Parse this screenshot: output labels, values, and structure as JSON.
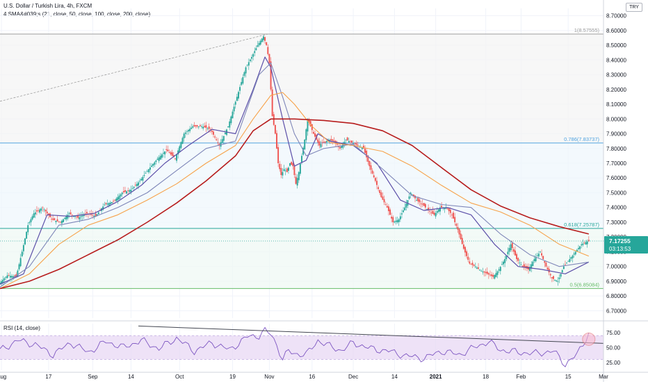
{
  "header": {
    "title": "U.S. Dollar / Turkish Lira, 4h, FXCM",
    "indicator": "4 SMA&#039;s (21, close, 50, close, 100, close, 200, close)",
    "currency": "TRY"
  },
  "price_badge": {
    "price": "7.17255",
    "countdown": "03:13:53"
  },
  "colors": {
    "candle_up": "#26a69a",
    "candle_down": "#ef5350",
    "sma21": "#5b4ea8",
    "sma50": "#7e86b8",
    "sma100": "#f7a24a",
    "sma200": "#b71c1c",
    "fib_786": "#4fa3e0",
    "fib_618": "#26a69a",
    "fib_5": "#66bb6a",
    "fib_1": "#9e9e9e",
    "rsi_line": "#7e57c2",
    "rsi_band": "#e7d6f3",
    "price_badge": "#26a69a"
  },
  "chart_data": [
    {
      "type": "candlestick",
      "title": "U.S. Dollar / Turkish Lira, 4h, FXCM",
      "ylim": [
        6.65,
        8.75
      ],
      "grid": true,
      "y_ticks": [
        "8.70000",
        "8.60000",
        "8.50000",
        "8.40000",
        "8.30000",
        "8.20000",
        "8.10000",
        "8.00000",
        "7.90000",
        "7.80000",
        "7.70000",
        "7.60000",
        "7.50000",
        "7.40000",
        "7.30000",
        "7.20000",
        "7.10000",
        "7.00000",
        "6.90000",
        "6.80000",
        "6.70000"
      ],
      "x_ticks": [
        "Aug",
        "17",
        "Sep",
        "14",
        "Oct",
        "19",
        "Nov",
        "16",
        "Dec",
        "14",
        "2021",
        "18",
        "Feb",
        "15",
        "Mar"
      ],
      "x_tick_index": [
        0.5,
        16.5,
        31.5,
        44.5,
        61,
        79,
        91.5,
        106,
        120,
        134,
        148,
        165,
        177,
        193,
        205
      ],
      "series": [
        {
          "name": "price",
          "x": [
            0,
            3,
            6,
            8,
            10,
            12,
            15,
            18,
            21,
            24,
            27,
            30,
            33,
            36,
            39,
            42,
            45,
            48,
            51,
            54,
            57,
            60,
            63,
            66,
            69,
            72,
            75,
            78,
            81,
            84,
            86,
            88,
            90,
            91,
            92,
            93,
            94,
            95,
            96,
            97,
            98,
            99,
            100,
            101,
            102,
            103,
            104,
            105,
            106,
            107,
            108,
            109,
            110,
            111,
            112,
            114,
            116,
            118,
            120,
            122,
            124,
            126,
            128,
            130,
            132,
            134,
            136,
            138,
            140,
            142,
            144,
            146,
            148,
            150,
            152,
            154,
            156,
            158,
            160,
            162,
            164,
            166,
            168,
            170,
            172,
            174,
            176,
            178,
            180,
            182,
            184,
            186,
            188,
            190,
            192,
            194,
            196,
            198,
            200
          ],
          "values": [
            6.88,
            6.94,
            6.93,
            7.1,
            7.28,
            7.36,
            7.4,
            7.32,
            7.3,
            7.36,
            7.33,
            7.36,
            7.34,
            7.42,
            7.44,
            7.5,
            7.52,
            7.58,
            7.66,
            7.73,
            7.79,
            7.73,
            7.9,
            7.95,
            7.95,
            7.93,
            7.82,
            7.95,
            8.15,
            8.35,
            8.42,
            8.5,
            8.56,
            8.5,
            8.38,
            8.02,
            7.9,
            7.7,
            7.62,
            7.66,
            7.64,
            7.7,
            7.68,
            7.56,
            7.64,
            7.75,
            7.86,
            8.0,
            7.95,
            7.9,
            7.86,
            7.82,
            7.84,
            7.84,
            7.86,
            7.85,
            7.8,
            7.86,
            7.84,
            7.82,
            7.8,
            7.68,
            7.58,
            7.47,
            7.4,
            7.3,
            7.32,
            7.4,
            7.5,
            7.45,
            7.42,
            7.38,
            7.35,
            7.4,
            7.4,
            7.35,
            7.25,
            7.12,
            7.02,
            7.0,
            6.97,
            6.95,
            6.93,
            6.98,
            7.05,
            7.15,
            7.05,
            7.0,
            6.98,
            7.05,
            7.1,
            7.0,
            6.92,
            6.9,
            7.0,
            7.05,
            7.1,
            7.15,
            7.17
          ]
        },
        {
          "name": "SMA 21",
          "x": [
            0,
            8,
            16,
            24,
            32,
            40,
            48,
            56,
            64,
            72,
            80,
            86,
            90,
            92,
            96,
            100,
            104,
            108,
            112,
            120,
            128,
            136,
            144,
            152,
            160,
            168,
            176,
            184,
            192,
            200
          ],
          "values": [
            6.88,
            6.95,
            7.35,
            7.34,
            7.36,
            7.44,
            7.55,
            7.7,
            7.82,
            7.93,
            7.9,
            8.2,
            8.42,
            8.35,
            8.0,
            7.68,
            7.72,
            7.9,
            7.85,
            7.82,
            7.7,
            7.45,
            7.38,
            7.4,
            7.35,
            7.15,
            7.0,
            6.98,
            6.95,
            7.03
          ]
        },
        {
          "name": "SMA 50",
          "x": [
            0,
            10,
            20,
            30,
            40,
            50,
            60,
            70,
            80,
            88,
            92,
            96,
            100,
            104,
            110,
            120,
            130,
            140,
            150,
            160,
            170,
            180,
            190,
            200
          ],
          "values": [
            6.86,
            7.0,
            7.28,
            7.32,
            7.4,
            7.5,
            7.65,
            7.8,
            7.85,
            8.3,
            8.38,
            8.15,
            7.9,
            7.75,
            7.8,
            7.83,
            7.66,
            7.48,
            7.42,
            7.4,
            7.22,
            7.08,
            7.0,
            7.03
          ]
        },
        {
          "name": "SMA 100",
          "x": [
            0,
            10,
            20,
            30,
            40,
            50,
            60,
            70,
            80,
            86,
            92,
            96,
            100,
            106,
            112,
            120,
            130,
            140,
            150,
            160,
            170,
            180,
            190,
            200
          ],
          "values": [
            6.85,
            6.95,
            7.15,
            7.28,
            7.35,
            7.45,
            7.56,
            7.7,
            7.82,
            8.0,
            8.16,
            8.18,
            8.1,
            7.95,
            7.84,
            7.82,
            7.78,
            7.68,
            7.55,
            7.43,
            7.37,
            7.28,
            7.15,
            7.07
          ]
        },
        {
          "name": "SMA 200",
          "x": [
            0,
            10,
            20,
            30,
            40,
            50,
            60,
            70,
            80,
            86,
            92,
            100,
            110,
            120,
            130,
            140,
            150,
            160,
            170,
            180,
            190,
            200
          ],
          "values": [
            6.85,
            6.9,
            6.98,
            7.08,
            7.18,
            7.3,
            7.43,
            7.58,
            7.75,
            7.92,
            8.0,
            8.0,
            7.99,
            7.97,
            7.92,
            7.82,
            7.67,
            7.52,
            7.41,
            7.33,
            7.27,
            7.22
          ]
        }
      ],
      "annotations": [
        {
          "label": "1(8.57555)",
          "value": 8.57555
        },
        {
          "label": "0.786(7.83737)",
          "value": 7.83737
        },
        {
          "label": "0.618(7.25787)",
          "value": 7.25787
        },
        {
          "label": "0.5(6.85084)",
          "value": 6.85084
        }
      ]
    },
    {
      "type": "line",
      "title": "RSI (14, close)",
      "ylim": [
        12,
        90
      ],
      "y_ticks": [
        "75.00",
        "50.00",
        "25.00"
      ],
      "band": [
        30,
        70
      ],
      "series": [
        {
          "name": "RSI",
          "x": [
            0,
            6,
            12,
            18,
            24,
            30,
            36,
            42,
            48,
            54,
            60,
            66,
            72,
            78,
            84,
            88,
            90,
            92,
            94,
            96,
            98,
            100,
            104,
            108,
            112,
            116,
            120,
            126,
            132,
            138,
            144,
            150,
            156,
            162,
            166,
            170,
            176,
            182,
            188,
            192,
            196,
            198,
            200
          ],
          "values": [
            45,
            62,
            55,
            38,
            58,
            42,
            60,
            50,
            62,
            48,
            66,
            44,
            58,
            46,
            68,
            70,
            78,
            72,
            55,
            30,
            44,
            40,
            38,
            62,
            52,
            45,
            58,
            48,
            44,
            36,
            32,
            44,
            38,
            52,
            60,
            46,
            42,
            40,
            44,
            22,
            38,
            56,
            74
          ]
        }
      ]
    }
  ]
}
